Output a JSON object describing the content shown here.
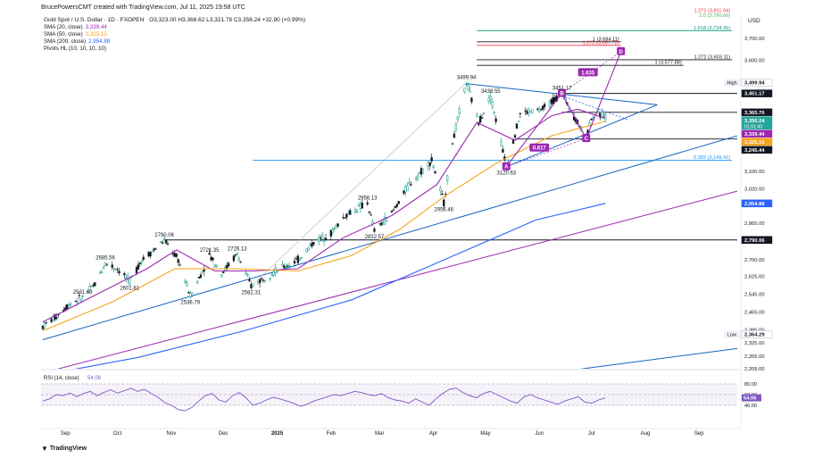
{
  "header": {
    "created_by": "BrucePowersCMT created with TradingView.com, Jul 11, 2025 19:58 UTC",
    "symbol": "Gold Spot / U.S. Dollar · 1D · FXOPEN",
    "ohlc": "O3,323.00 H3,368.62 L3,321.78 C3,356.24 +32.90 (+0.99%)",
    "indicators": [
      {
        "label": "SMA (20, close)",
        "value": "3,339.44",
        "color": "#9c27b0"
      },
      {
        "label": "SMA (50, close)",
        "value": "3,325.15",
        "color": "#f7a21b"
      },
      {
        "label": "SMA (200, close)",
        "value": "2,954.88",
        "color": "#2962ff"
      },
      {
        "label": "Pivots HL (10, 10, 10, 10)",
        "value": "",
        "color": "#131722"
      }
    ],
    "currency": "USD"
  },
  "axis": {
    "ticks": [
      "3,700.00",
      "3,600.00",
      "3,100.00",
      "3,020.00",
      "2,865.00",
      "2,700.00",
      "2,625.00",
      "2,545.00",
      "2,465.00",
      "2,385.00",
      "2,325.00",
      "2,265.00",
      "2,209.00"
    ],
    "price_tags": [
      {
        "text": "3,499.94",
        "price": 3499.94,
        "bg": "#ffffff",
        "fg": "#131722",
        "label": "High"
      },
      {
        "text": "3,451.17",
        "price": 3451.17,
        "bg": "#131722",
        "fg": "#ffffff",
        "label": ""
      },
      {
        "text": "3,365.70",
        "price": 3365.7,
        "bg": "#131722",
        "fg": "#ffffff",
        "label": ""
      },
      {
        "text": "3,356.24",
        "price": 3356.24,
        "bg": "#26a69a",
        "fg": "#ffffff",
        "label": "",
        "sub": "01:01:40"
      },
      {
        "text": "3,339.44",
        "price": 3339.44,
        "bg": "#9c27b0",
        "fg": "#ffffff",
        "label": ""
      },
      {
        "text": "3,325.15",
        "price": 3325.15,
        "bg": "#f7a21b",
        "fg": "#ffffff",
        "label": ""
      },
      {
        "text": "3,245.44",
        "price": 3245.44,
        "bg": "#131722",
        "fg": "#ffffff",
        "label": ""
      },
      {
        "text": "2,954.88",
        "price": 2954.88,
        "bg": "#2962ff",
        "fg": "#ffffff",
        "label": ""
      },
      {
        "text": "2,790.06",
        "price": 2790.06,
        "bg": "#131722",
        "fg": "#ffffff",
        "label": ""
      },
      {
        "text": "2,364.29",
        "price": 2364.29,
        "bg": "#ffffff",
        "fg": "#131722",
        "label": "Low"
      }
    ],
    "months": [
      "Sep",
      "Oct",
      "Nov",
      "Dec",
      "2025",
      "Feb",
      "Mar",
      "Apr",
      "May",
      "Jun",
      "Jul",
      "Aug",
      "Sep"
    ]
  },
  "chart_data": {
    "type": "candlestick",
    "symbol": "XAUUSD",
    "timeframe": "1D",
    "y_range": [
      2209,
      3780
    ],
    "x_range": [
      "2024-08-20",
      "2025-09-25"
    ],
    "last_close": 3356.24,
    "close_path": [
      {
        "d": "2024-08-21",
        "c": 2400
      },
      {
        "d": "2024-08-28",
        "c": 2440
      },
      {
        "d": "2024-09-05",
        "c": 2500
      },
      {
        "d": "2024-09-13",
        "c": 2531.63
      },
      {
        "d": "2024-09-20",
        "c": 2590
      },
      {
        "d": "2024-09-26",
        "c": 2685.56
      },
      {
        "d": "2024-10-03",
        "c": 2660
      },
      {
        "d": "2024-10-10",
        "c": 2601.81
      },
      {
        "d": "2024-10-17",
        "c": 2700
      },
      {
        "d": "2024-10-24",
        "c": 2745
      },
      {
        "d": "2024-10-30",
        "c": 2790.06
      },
      {
        "d": "2024-11-07",
        "c": 2700
      },
      {
        "d": "2024-11-14",
        "c": 2536.79
      },
      {
        "d": "2024-11-21",
        "c": 2650
      },
      {
        "d": "2024-11-25",
        "c": 2721.35
      },
      {
        "d": "2024-12-02",
        "c": 2640
      },
      {
        "d": "2024-12-11",
        "c": 2726.13
      },
      {
        "d": "2024-12-19",
        "c": 2582.31
      },
      {
        "d": "2025-01-02",
        "c": 2650
      },
      {
        "d": "2025-01-15",
        "c": 2700
      },
      {
        "d": "2025-01-24",
        "c": 2780
      },
      {
        "d": "2025-02-03",
        "c": 2820
      },
      {
        "d": "2025-02-11",
        "c": 2900
      },
      {
        "d": "2025-02-24",
        "c": 2956.13
      },
      {
        "d": "2025-02-28",
        "c": 2832.57
      },
      {
        "d": "2025-03-10",
        "c": 2910
      },
      {
        "d": "2025-03-20",
        "c": 3040
      },
      {
        "d": "2025-04-02",
        "c": 3150
      },
      {
        "d": "2025-04-09",
        "c": 2956.46
      },
      {
        "d": "2025-04-14",
        "c": 3230
      },
      {
        "d": "2025-04-22",
        "c": 3499.94
      },
      {
        "d": "2025-04-29",
        "c": 3320
      },
      {
        "d": "2025-05-06",
        "c": 3438.55
      },
      {
        "d": "2025-05-15",
        "c": 3120.63
      },
      {
        "d": "2025-05-23",
        "c": 3360
      },
      {
        "d": "2025-06-05",
        "c": 3380
      },
      {
        "d": "2025-06-16",
        "c": 3451.17
      },
      {
        "d": "2025-06-30",
        "c": 3248
      },
      {
        "d": "2025-07-03",
        "c": 3345
      },
      {
        "d": "2025-07-11",
        "c": 3356.24
      }
    ],
    "sma": [
      {
        "name": "SMA (20, close)",
        "last": 3339.44,
        "color": "#9c27b0",
        "points": [
          {
            "d": "2024-08-21",
            "v": 2420
          },
          {
            "d": "2024-09-20",
            "v": 2540
          },
          {
            "d": "2024-10-20",
            "v": 2660
          },
          {
            "d": "2024-11-06",
            "v": 2745
          },
          {
            "d": "2024-11-28",
            "v": 2650
          },
          {
            "d": "2024-12-20",
            "v": 2650
          },
          {
            "d": "2025-01-15",
            "v": 2660
          },
          {
            "d": "2025-02-10",
            "v": 2800
          },
          {
            "d": "2025-03-10",
            "v": 2900
          },
          {
            "d": "2025-04-05",
            "v": 3040
          },
          {
            "d": "2025-04-28",
            "v": 3320
          },
          {
            "d": "2025-05-20",
            "v": 3240
          },
          {
            "d": "2025-06-10",
            "v": 3350
          },
          {
            "d": "2025-06-25",
            "v": 3380
          },
          {
            "d": "2025-07-11",
            "v": 3339.44
          }
        ]
      },
      {
        "name": "SMA (50, close)",
        "last": 3325.15,
        "color": "#f7a21b",
        "points": [
          {
            "d": "2024-08-21",
            "v": 2380
          },
          {
            "d": "2024-09-30",
            "v": 2510
          },
          {
            "d": "2024-11-05",
            "v": 2660
          },
          {
            "d": "2024-12-10",
            "v": 2660
          },
          {
            "d": "2025-01-15",
            "v": 2650
          },
          {
            "d": "2025-02-15",
            "v": 2720
          },
          {
            "d": "2025-03-15",
            "v": 2840
          },
          {
            "d": "2025-04-10",
            "v": 2990
          },
          {
            "d": "2025-05-10",
            "v": 3140
          },
          {
            "d": "2025-06-10",
            "v": 3260
          },
          {
            "d": "2025-07-11",
            "v": 3325.15
          }
        ]
      },
      {
        "name": "SMA (200, close)",
        "last": 2954.88,
        "color": "#2962ff",
        "points": [
          {
            "d": "2024-08-21",
            "v": 2180
          },
          {
            "d": "2024-10-15",
            "v": 2260
          },
          {
            "d": "2024-12-15",
            "v": 2380
          },
          {
            "d": "2025-02-15",
            "v": 2520
          },
          {
            "d": "2025-04-15",
            "v": 2720
          },
          {
            "d": "2025-06-01",
            "v": 2880
          },
          {
            "d": "2025-07-11",
            "v": 2954.88
          }
        ]
      }
    ],
    "pivot_labels": [
      {
        "text": "2531.63",
        "d": "2024-09-13",
        "p": 2531.63,
        "pos": "above"
      },
      {
        "text": "2685.56",
        "d": "2024-09-26",
        "p": 2685.56,
        "pos": "above"
      },
      {
        "text": "2601.81",
        "d": "2024-10-10",
        "p": 2601.81,
        "pos": "below"
      },
      {
        "text": "2790.06",
        "d": "2024-10-30",
        "p": 2790.06,
        "pos": "above"
      },
      {
        "text": "2536.79",
        "d": "2024-11-14",
        "p": 2536.79,
        "pos": "below"
      },
      {
        "text": "2721.35",
        "d": "2024-11-25",
        "p": 2721.35,
        "pos": "above"
      },
      {
        "text": "2726.13",
        "d": "2024-12-11",
        "p": 2726.13,
        "pos": "above"
      },
      {
        "text": "2582.31",
        "d": "2024-12-19",
        "p": 2582.31,
        "pos": "below"
      },
      {
        "text": "2956.13",
        "d": "2025-02-24",
        "p": 2956.13,
        "pos": "above"
      },
      {
        "text": "2832.57",
        "d": "2025-02-28",
        "p": 2832.57,
        "pos": "below"
      },
      {
        "text": "2956.46",
        "d": "2025-04-09",
        "p": 2956.46,
        "pos": "below"
      },
      {
        "text": "3499.94",
        "d": "2025-04-22",
        "p": 3499.94,
        "pos": "above"
      },
      {
        "text": "3438.55",
        "d": "2025-05-06",
        "p": 3438.55,
        "pos": "above"
      },
      {
        "text": "3120.63",
        "d": "2025-05-15",
        "p": 3120.63,
        "pos": "below"
      },
      {
        "text": "3451.17",
        "d": "2025-06-16",
        "p": 3451.17,
        "pos": "above"
      }
    ],
    "horizontal_levels": [
      {
        "text": "1.272 (3,811.94)",
        "price": 3811.94,
        "from": "2025-04-28",
        "to": "2025-09-22",
        "color": "#f23645"
      },
      {
        "text": "1.5 (3,790.66)",
        "price": 3790.66,
        "from": "2025-04-28",
        "to": "2025-09-22",
        "color": "#4caf50"
      },
      {
        "text": "1.618 (3,734.35)",
        "price": 3734.35,
        "from": "2025-04-28",
        "to": "2025-09-22",
        "color": "#089981"
      },
      {
        "text": "1 (3,684.11)",
        "price": 3684.11,
        "from": "2025-04-28",
        "to": "2025-07-20",
        "color": "#131722"
      },
      {
        "text": "1.272 (3,667.78)",
        "price": 3667.78,
        "from": "2025-04-28",
        "to": "2025-07-20",
        "color": "#f23645"
      },
      {
        "text": "1.272 (3,603.11)",
        "price": 3603.11,
        "from": "2025-04-28",
        "to": "2025-09-22",
        "color": "#131722"
      },
      {
        "text": "1 (3,577.88)",
        "price": 3577.88,
        "from": "2025-04-28",
        "to": "2025-08-25",
        "color": "#131722"
      },
      {
        "text": "0.382 (3,149.41)",
        "price": 3149.41,
        "from": "2024-12-20",
        "to": "2025-09-22",
        "color": "#2196f3"
      },
      {
        "text": "",
        "price": 3451.17,
        "from": "2025-06-16",
        "to": "2025-09-25",
        "color": "#131722"
      },
      {
        "text": "",
        "price": 3365.7,
        "from": "2025-06-16",
        "to": "2025-09-25",
        "color": "#131722"
      },
      {
        "text": "",
        "price": 3245.44,
        "from": "2025-05-20",
        "to": "2025-09-25",
        "color": "#131722"
      },
      {
        "text": "",
        "price": 2790.06,
        "from": "2024-10-30",
        "to": "2025-09-25",
        "color": "#131722"
      }
    ],
    "trendlines": [
      {
        "from": {
          "d": "2024-08-21",
          "p": 2340
        },
        "to": {
          "d": "2025-09-25",
          "p": 3260
        },
        "color": "#1565c0"
      },
      {
        "from": {
          "d": "2024-08-21",
          "p": 2190
        },
        "to": {
          "d": "2025-09-25",
          "p": 3010
        },
        "color": "#9c27b0"
      },
      {
        "from": {
          "d": "2025-04-12",
          "p": 2130
        },
        "to": {
          "d": "2025-09-25",
          "p": 2300
        },
        "color": "#1565c0"
      },
      {
        "from": {
          "d": "2025-05-15",
          "p": 3120
        },
        "to": {
          "d": "2025-08-10",
          "p": 3400
        },
        "color": "#1565c0"
      },
      {
        "from": {
          "d": "2025-04-22",
          "p": 3495
        },
        "to": {
          "d": "2025-08-10",
          "p": 3400
        },
        "color": "#1565c0"
      }
    ],
    "pattern_points": [
      {
        "label": "A",
        "d": "2025-05-15",
        "p": 3120.63
      },
      {
        "label": "B",
        "d": "2025-06-16",
        "p": 3451.17
      },
      {
        "label": "C",
        "d": "2025-06-30",
        "p": 3248
      },
      {
        "label": "D",
        "d": "2025-07-20",
        "p": 3640
      }
    ],
    "ratio_labels": [
      {
        "text": "0.617",
        "d": "2025-06-03",
        "p": 3205
      },
      {
        "text": "1.635",
        "d": "2025-07-01",
        "p": 3545
      }
    ],
    "rsi": {
      "name": "RSI (14, close)",
      "last": 54.06,
      "range": [
        0,
        100
      ],
      "levels": [
        {
          "text": "80.00",
          "v": 80
        },
        {
          "text": "60.00",
          "v": 60
        },
        {
          "text": "40.00",
          "v": 40
        }
      ],
      "values": [
        48,
        52,
        60,
        58,
        63,
        56,
        62,
        66,
        58,
        64,
        69,
        63,
        67,
        72,
        66,
        70,
        62,
        55,
        45,
        40,
        32,
        30,
        36,
        48,
        58,
        62,
        50,
        46,
        58,
        64,
        54,
        40,
        44,
        50,
        55,
        52,
        48,
        44,
        38,
        42,
        48,
        52,
        56,
        60,
        58,
        62,
        66,
        64,
        60,
        58,
        62,
        54,
        50,
        48,
        44,
        52,
        46,
        40,
        52,
        62,
        70,
        72,
        64,
        58,
        54,
        62,
        66,
        60,
        54,
        48,
        44,
        56,
        60,
        54,
        50,
        46,
        42,
        48,
        52,
        56,
        46,
        44,
        50,
        54.06
      ]
    }
  }
}
